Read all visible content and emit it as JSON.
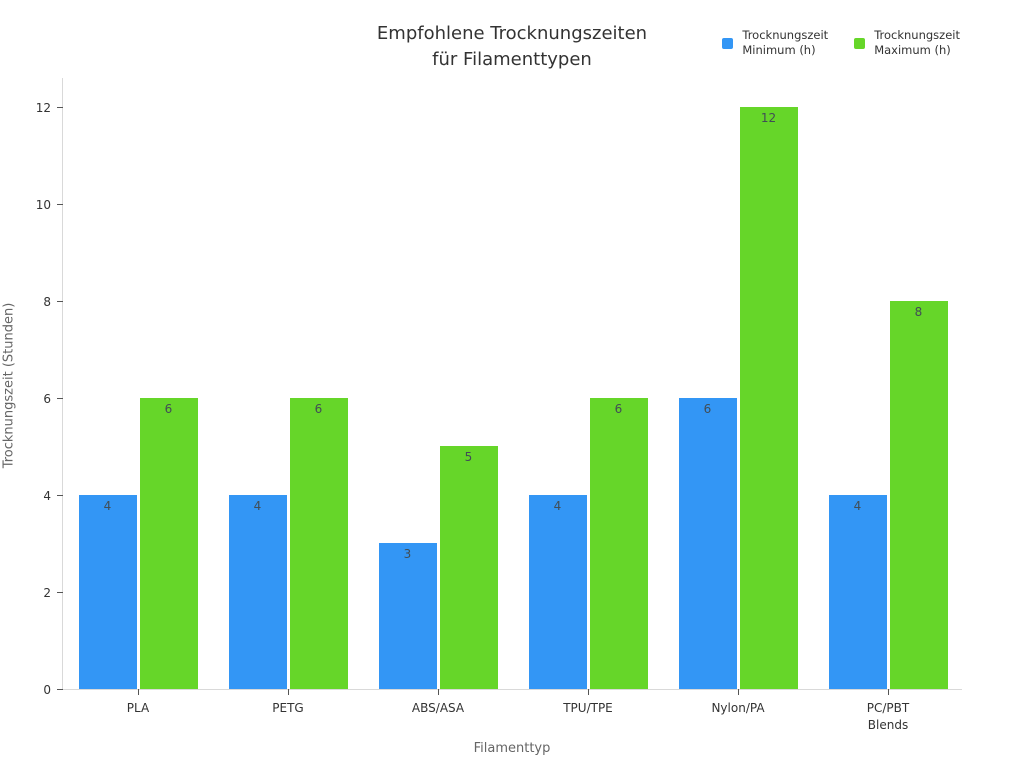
{
  "title": {
    "line1": "Empfohlene Trocknungszeiten",
    "line2": "für Filamenttypen"
  },
  "legend": {
    "items": [
      {
        "label_line1": "Trocknungszeit",
        "label_line2": "Minimum (h)",
        "color": "#3396F5"
      },
      {
        "label_line1": "Trocknungszeit",
        "label_line2": "Maximum (h)",
        "color": "#66D629"
      }
    ]
  },
  "axes": {
    "x_title": "Filamenttyp",
    "y_title": "Trocknungszeit (Stunden)"
  },
  "colors": {
    "min_bar": "#3396F5",
    "max_bar": "#66D629",
    "axis_line": "#d9d9d9",
    "tick_mark": "#555555",
    "tick_label": "#333333",
    "value_label": "#414d56",
    "muted_text": "#666666",
    "title_text": "#333333"
  },
  "chart_data": {
    "type": "bar",
    "title": "Empfohlene Trocknungszeiten für Filamenttypen",
    "xlabel": "Filamenttyp",
    "ylabel": "Trocknungszeit (Stunden)",
    "categories": [
      "PLA",
      "PETG",
      "ABS/ASA",
      "TPU/TPE",
      "Nylon/PA",
      "PC/PBT\nBlends"
    ],
    "series": [
      {
        "name": "Trocknungszeit Minimum (h)",
        "color": "#3396F5",
        "values": [
          4,
          4,
          3,
          4,
          6,
          4
        ]
      },
      {
        "name": "Trocknungszeit Maximum (h)",
        "color": "#66D629",
        "values": [
          6,
          6,
          5,
          6,
          12,
          8
        ]
      }
    ],
    "ylim": [
      0,
      12
    ],
    "yticks": [
      0,
      2,
      4,
      6,
      8,
      10,
      12
    ],
    "grid": false,
    "legend_position": "top-right",
    "bar_value_labels": true
  }
}
